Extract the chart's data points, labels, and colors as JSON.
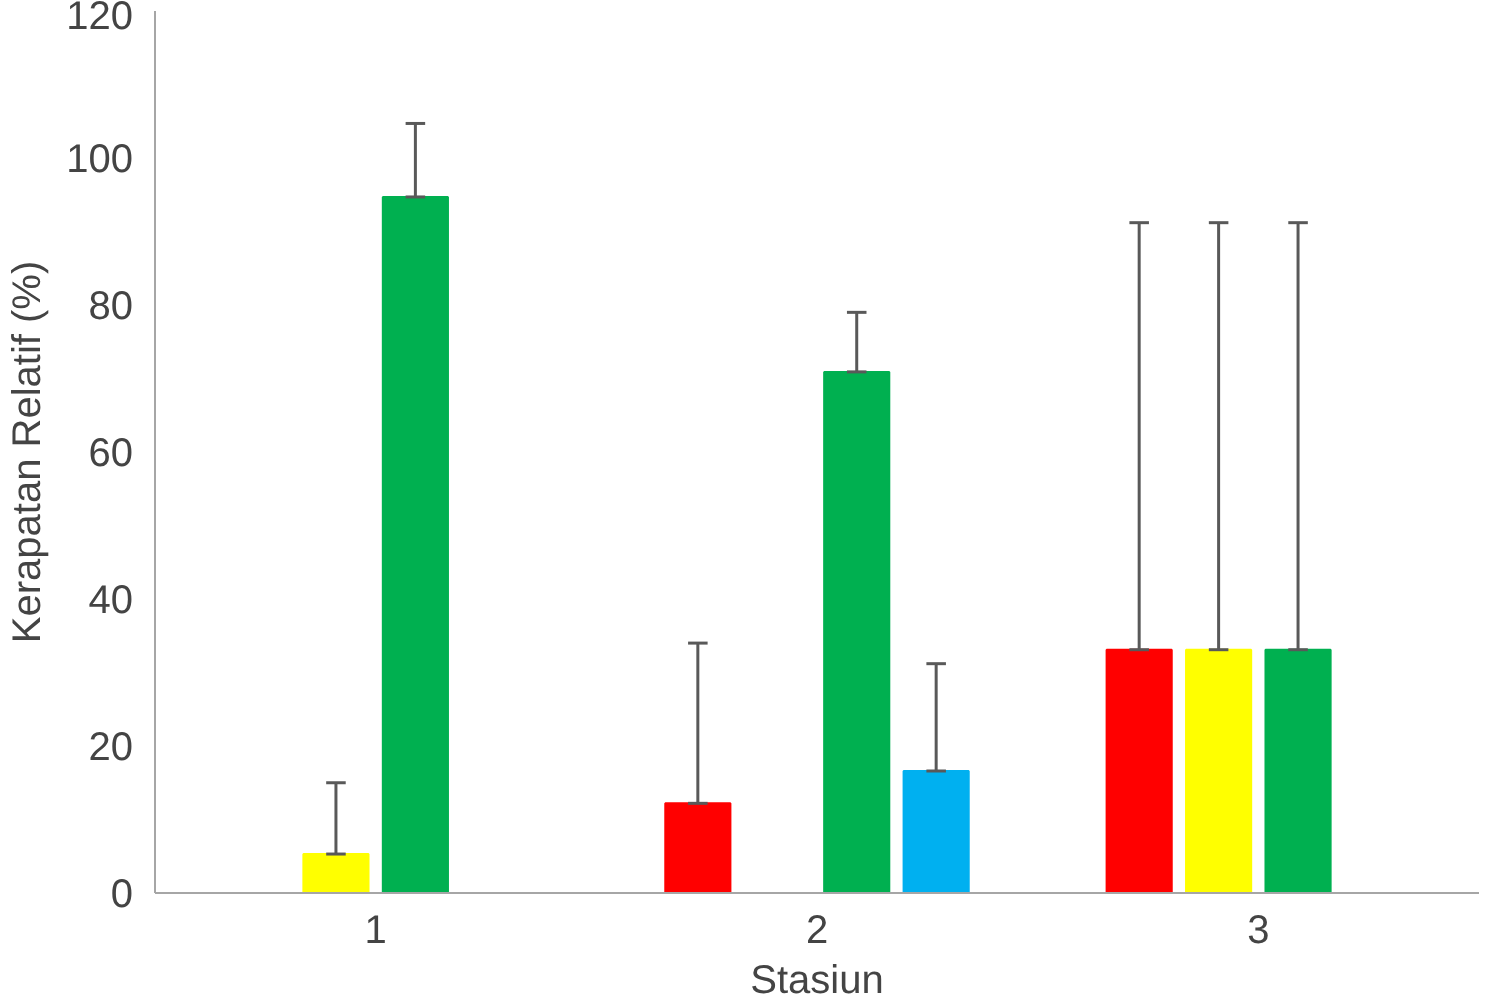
{
  "chart_data": {
    "type": "bar",
    "xlabel": "Stasiun",
    "ylabel": "Kerapatan Relatif (%)",
    "categories": [
      "1",
      "2",
      "3"
    ],
    "series": [
      {
        "color": "#ff0000",
        "values": [
          0,
          12.2,
          33.1
        ],
        "errors": [
          null,
          [
            12.2,
            34
          ],
          [
            33.1,
            91.2
          ]
        ]
      },
      {
        "color": "#ffff00",
        "values": [
          5.3,
          0,
          33.1
        ],
        "errors": [
          [
            5.3,
            15
          ],
          null,
          [
            33.1,
            91.2
          ]
        ]
      },
      {
        "color": "#00b050",
        "values": [
          94.7,
          70.9,
          33.1
        ],
        "errors": [
          [
            94.7,
            104.7
          ],
          [
            70.9,
            79
          ],
          [
            33.1,
            91.2
          ]
        ]
      },
      {
        "color": "#00b0f0",
        "values": [
          0,
          16.6,
          0
        ],
        "errors": [
          null,
          [
            16.6,
            31.2
          ],
          null
        ]
      }
    ],
    "ylim": [
      0,
      120
    ],
    "yticks": [
      0,
      20,
      40,
      60,
      80,
      100,
      120
    ],
    "grid": false
  }
}
